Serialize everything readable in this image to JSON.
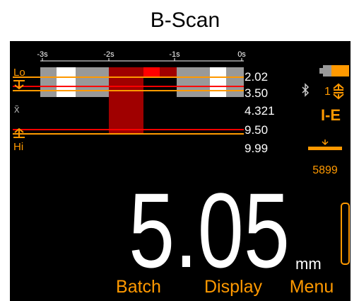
{
  "header": {
    "title": "B-Scan"
  },
  "scan": {
    "time_labels": [
      "-3s",
      "-2s",
      "-1s",
      "0s"
    ],
    "lo_label": "Lo",
    "mean_label": "x̄",
    "hi_label": "Hi",
    "readings": [
      "2.02",
      "3.50",
      "4.321",
      "9.50",
      "9.99"
    ]
  },
  "status": {
    "gain": "1",
    "mode": "I-E",
    "velocity": "5899"
  },
  "measurement": {
    "value": "5.05",
    "unit": "mm"
  },
  "softkeys": [
    "Batch",
    "Display",
    "Menu"
  ]
}
